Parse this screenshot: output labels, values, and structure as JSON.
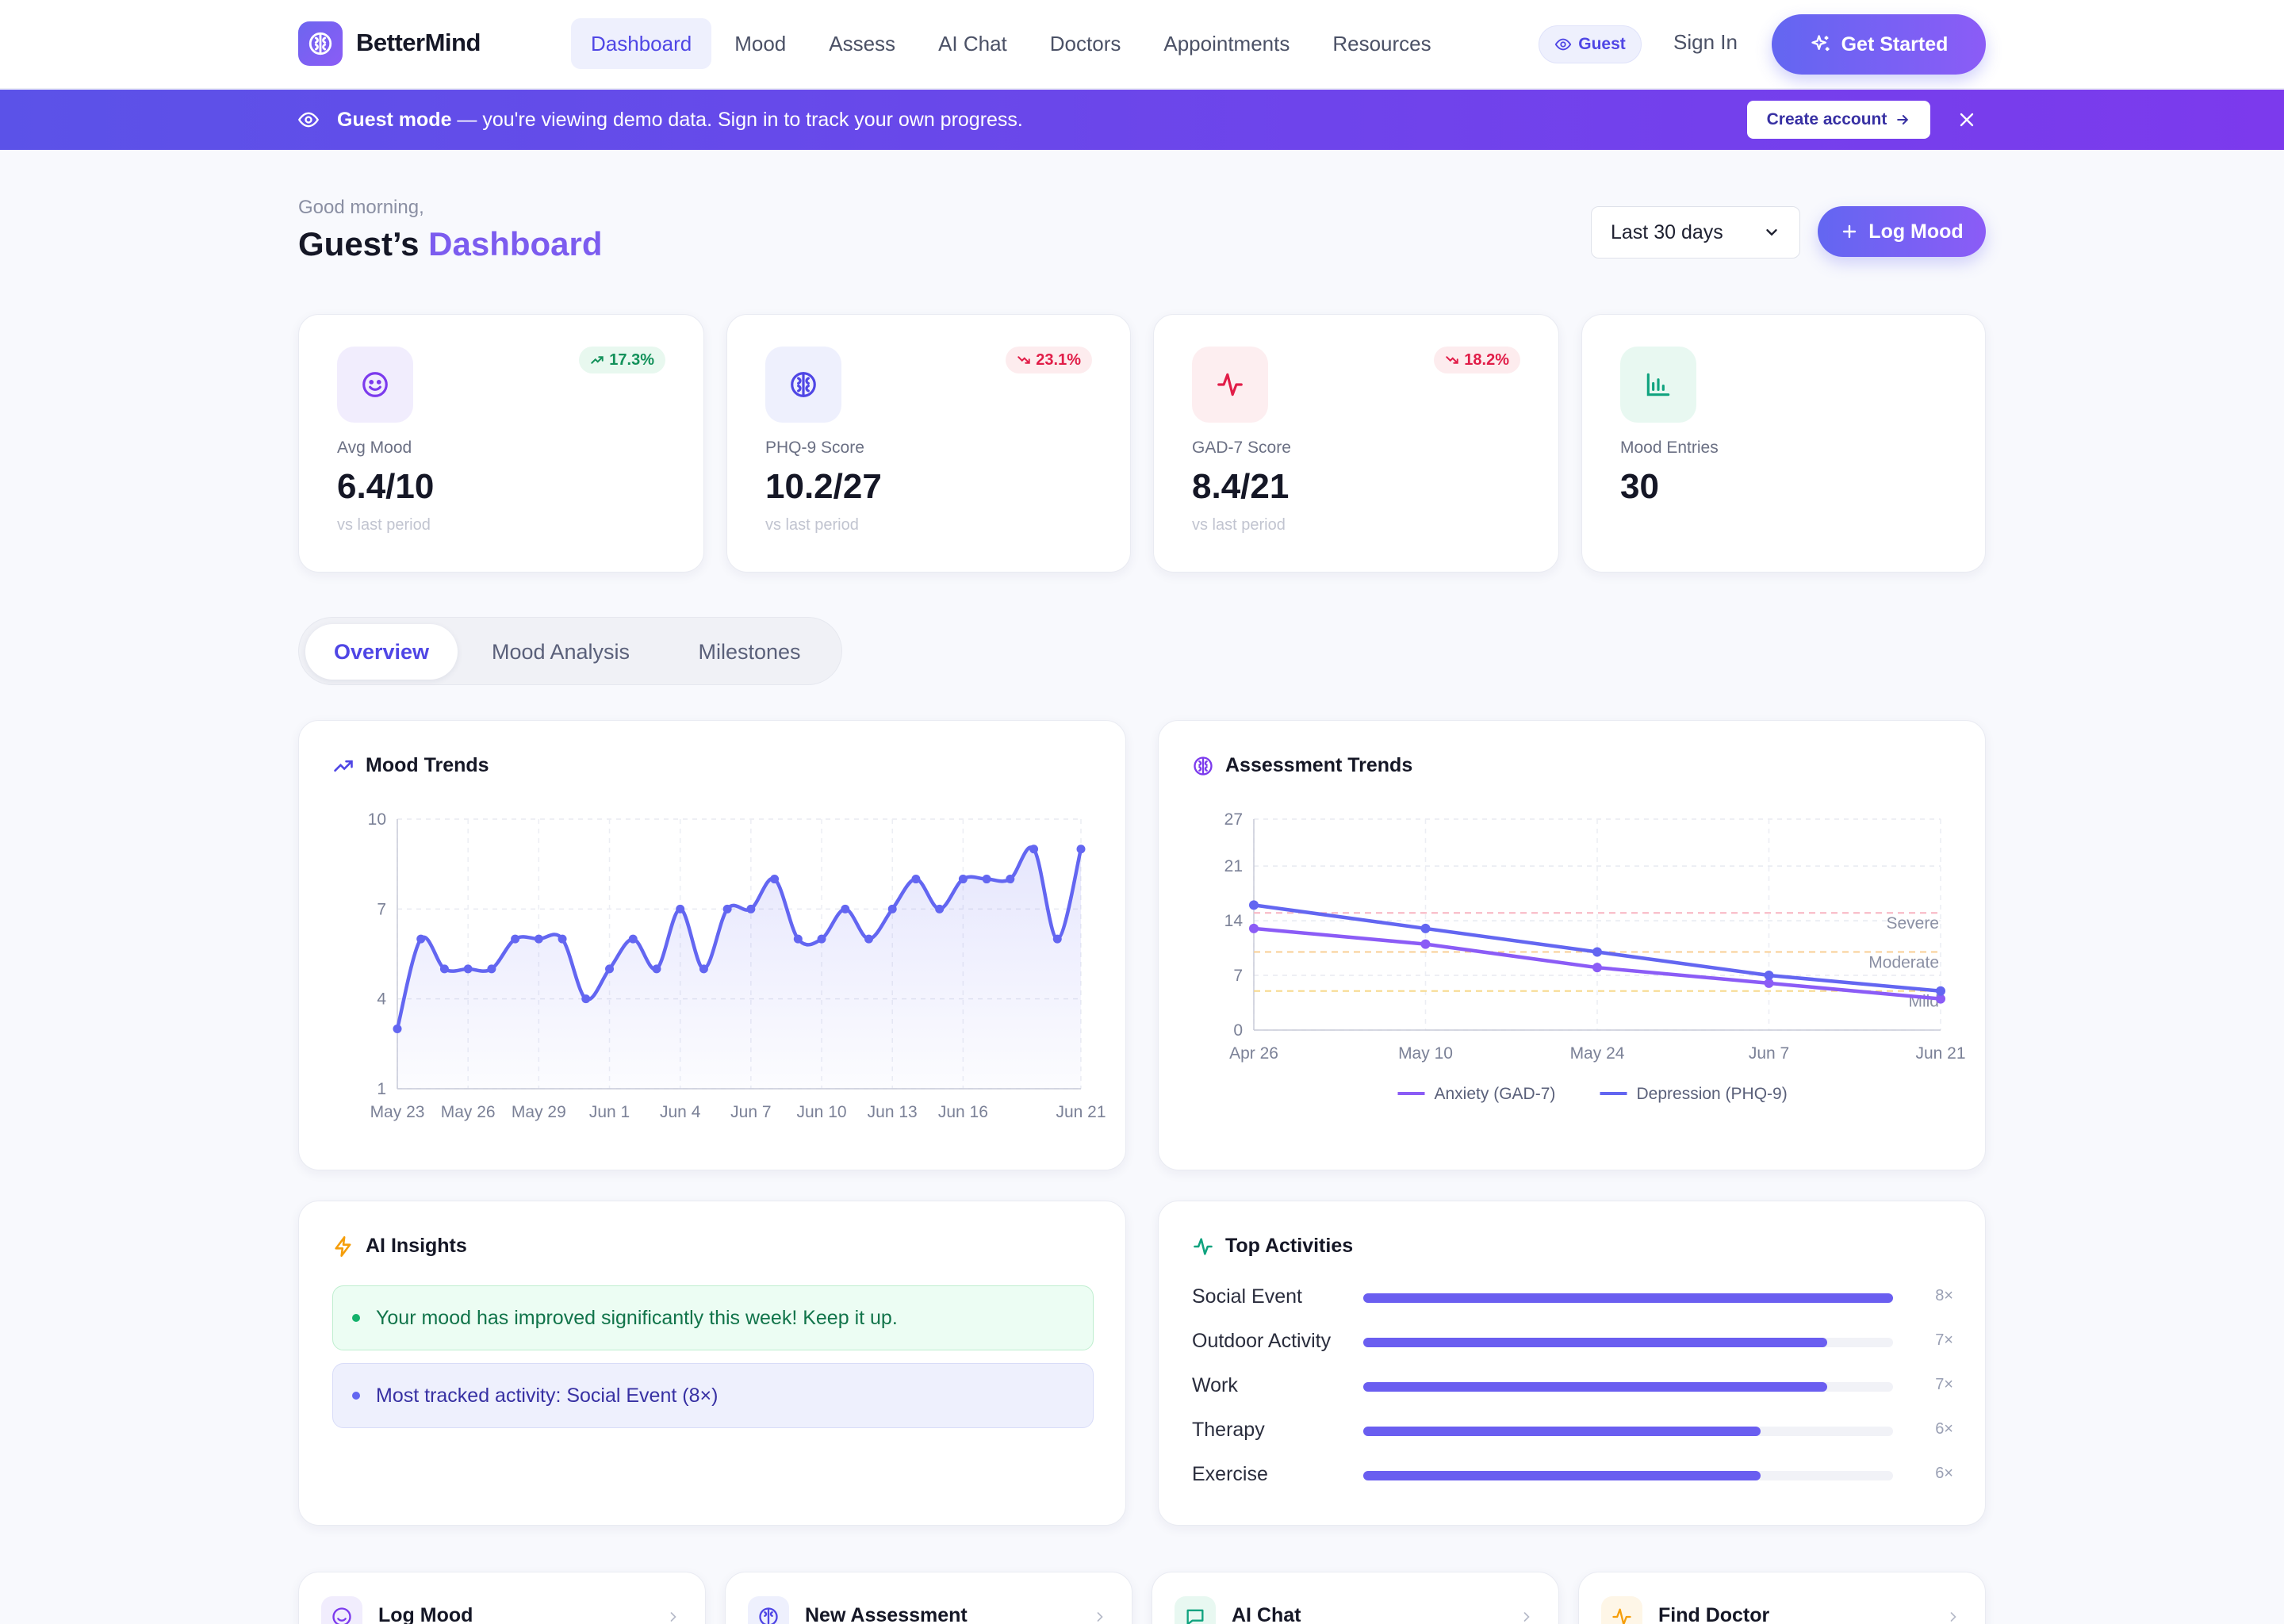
{
  "app": {
    "brand": "BetterMind"
  },
  "nav": {
    "links": [
      "Dashboard",
      "Mood",
      "Assess",
      "AI Chat",
      "Doctors",
      "Appointments",
      "Resources"
    ],
    "guest_badge": "Guest",
    "sign_in": "Sign In",
    "get_started": "Get Started"
  },
  "banner": {
    "strong": "Guest mode",
    "text": " — you're viewing demo data. Sign in to track your own progress.",
    "create_account": "Create account"
  },
  "header": {
    "greeting": "Good morning,",
    "title_prefix": "Guest’s",
    "title_accent": "Dashboard",
    "period_select": "Last 30 days",
    "log_mood": "Log Mood"
  },
  "stats": [
    {
      "label": "Avg Mood",
      "value": "6.4/10",
      "sub": "vs last period",
      "badge": "17.3%",
      "trend": "up",
      "icon": "smile-icon",
      "color": "#7c3aed",
      "bg": "#f1edfd"
    },
    {
      "label": "PHQ-9 Score",
      "value": "10.2/27",
      "sub": "vs last period",
      "badge": "23.1%",
      "trend": "down",
      "icon": "brain-icon",
      "color": "#4f46e5",
      "bg": "#eef0fd"
    },
    {
      "label": "GAD-7 Score",
      "value": "8.4/21",
      "sub": "vs last period",
      "badge": "18.2%",
      "trend": "down",
      "icon": "activity-icon",
      "color": "#e11d48",
      "bg": "#fdeef0"
    },
    {
      "label": "Mood Entries",
      "value": "30",
      "sub": "",
      "badge": "",
      "trend": "",
      "icon": "bar-chart-icon",
      "color": "#10a37f",
      "bg": "#e8f8f1"
    }
  ],
  "tabs": [
    "Overview",
    "Mood Analysis",
    "Milestones"
  ],
  "mood_trends": {
    "title": "Mood Trends"
  },
  "assessment_trends": {
    "title": "Assessment Trends"
  },
  "insights": {
    "title": "AI Insights",
    "items": [
      {
        "text": "Your mood has improved significantly this week! Keep it up.",
        "tone": "success"
      },
      {
        "text": "Most tracked activity: Social Event (8×)",
        "tone": "info"
      }
    ]
  },
  "activities": {
    "title": "Top Activities",
    "items": [
      {
        "name": "Social Event",
        "count": "8×",
        "value": 8
      },
      {
        "name": "Outdoor Activity",
        "count": "7×",
        "value": 7
      },
      {
        "name": "Work",
        "count": "7×",
        "value": 7
      },
      {
        "name": "Therapy",
        "count": "6×",
        "value": 6
      },
      {
        "name": "Exercise",
        "count": "6×",
        "value": 6
      }
    ]
  },
  "quick_actions": [
    {
      "label": "Log Mood",
      "icon": "smile-icon",
      "color": "#7c3aed",
      "bg": "#f1edfd"
    },
    {
      "label": "New Assessment",
      "icon": "brain-icon",
      "color": "#4f46e5",
      "bg": "#eef0fd"
    },
    {
      "label": "AI Chat",
      "icon": "chat-icon",
      "color": "#10a37f",
      "bg": "#e8f8f1"
    },
    {
      "label": "Find Doctor",
      "icon": "activity-icon",
      "color": "#f59e0b",
      "bg": "#fef6e7"
    }
  ],
  "colors": {
    "primary": "#6366f1",
    "accent": "#8b5cf6",
    "success": "#13915a",
    "danger": "#e11d48"
  },
  "chart_data": [
    {
      "type": "area",
      "title": "Mood Trends",
      "x": [
        "May 23",
        "May 24",
        "May 25",
        "May 26",
        "May 27",
        "May 28",
        "May 29",
        "May 30",
        "May 31",
        "Jun 1",
        "Jun 2",
        "Jun 3",
        "Jun 4",
        "Jun 5",
        "Jun 6",
        "Jun 7",
        "Jun 8",
        "Jun 9",
        "Jun 10",
        "Jun 11",
        "Jun 12",
        "Jun 13",
        "Jun 14",
        "Jun 15",
        "Jun 16",
        "Jun 17",
        "Jun 18",
        "Jun 19",
        "Jun 20",
        "Jun 21"
      ],
      "values": [
        3,
        6,
        5,
        5,
        5,
        6,
        6,
        6,
        4,
        5,
        6,
        5,
        7,
        5,
        7,
        7,
        8,
        6,
        6,
        7,
        6,
        7,
        8,
        7,
        8,
        8,
        8,
        9,
        6,
        9
      ],
      "xticks": [
        "May 23",
        "May 26",
        "May 29",
        "Jun 1",
        "Jun 4",
        "Jun 7",
        "Jun 10",
        "Jun 13",
        "Jun 16",
        "Jun 21"
      ],
      "yticks": [
        "1",
        "4",
        "7",
        "10"
      ],
      "ylim": [
        1,
        10
      ],
      "grid": true
    },
    {
      "type": "line",
      "title": "Assessment Trends",
      "x": [
        "Apr 26",
        "May 10",
        "May 24",
        "Jun 7",
        "Jun 21"
      ],
      "yticks": [
        "0",
        "7",
        "14",
        "21",
        "27"
      ],
      "ylim": [
        0,
        27
      ],
      "series": [
        {
          "name": "Anxiety (GAD-7)",
          "values": [
            13,
            11,
            8,
            6,
            4
          ],
          "color": "#8b5cf6"
        },
        {
          "name": "Depression (PHQ-9)",
          "values": [
            16,
            13,
            10,
            7,
            5
          ],
          "color": "#6366f1"
        }
      ],
      "thresholds": [
        {
          "label": "Severe",
          "value": 15,
          "color": "#f8b4c0"
        },
        {
          "label": "Moderate",
          "value": 10,
          "color": "#f9cf94"
        },
        {
          "label": "Mild",
          "value": 5,
          "color": "#f7d98c"
        }
      ],
      "legend": "bottom",
      "grid": true
    }
  ]
}
